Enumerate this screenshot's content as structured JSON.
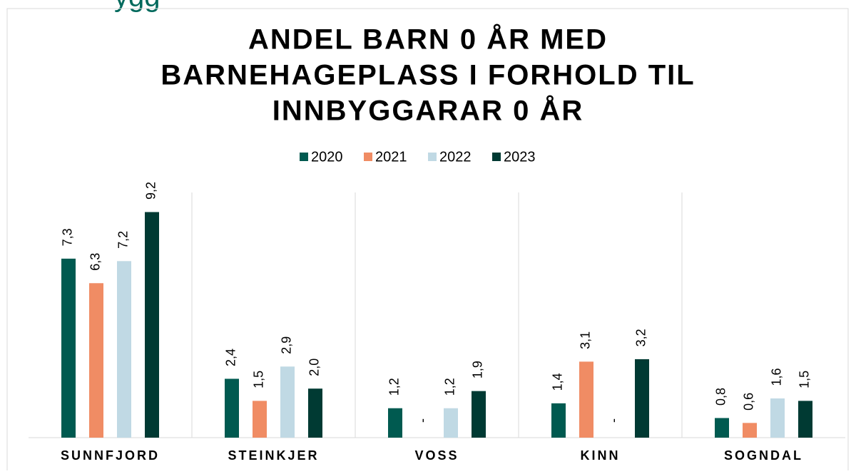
{
  "header_fragment": "ygg",
  "chart_data": {
    "type": "bar",
    "title": [
      "ANDEL BARN 0 ÅR MED",
      "BARNEHAGEPLASS I FORHOLD TIL",
      "INNBYGGARAR 0 ÅR"
    ],
    "categories": [
      "SUNNFJORD",
      "STEINKJER",
      "VOSS",
      "KINN",
      "SOGNDAL"
    ],
    "series": [
      {
        "name": "2020",
        "color": "#005a50",
        "values": [
          7.3,
          2.4,
          1.2,
          1.4,
          0.8
        ],
        "value_labels": [
          "7,3",
          "2,4",
          "1,2",
          "1,4",
          "0,8"
        ]
      },
      {
        "name": "2021",
        "color": "#f08c64",
        "values": [
          6.3,
          1.5,
          null,
          3.1,
          0.6
        ],
        "value_labels": [
          "6,3",
          "1,5",
          "-",
          "3,1",
          "0,6"
        ]
      },
      {
        "name": "2022",
        "color": "#c0d9e4",
        "values": [
          7.2,
          2.9,
          1.2,
          null,
          1.6
        ],
        "value_labels": [
          "7,2",
          "2,9",
          "1,2",
          "-",
          "1,6"
        ]
      },
      {
        "name": "2023",
        "color": "#003a33",
        "values": [
          9.2,
          2.0,
          1.9,
          3.2,
          1.5
        ],
        "value_labels": [
          "9,2",
          "2,0",
          "1,9",
          "3,2",
          "1,5"
        ]
      }
    ],
    "ylim": [
      0,
      10
    ]
  }
}
